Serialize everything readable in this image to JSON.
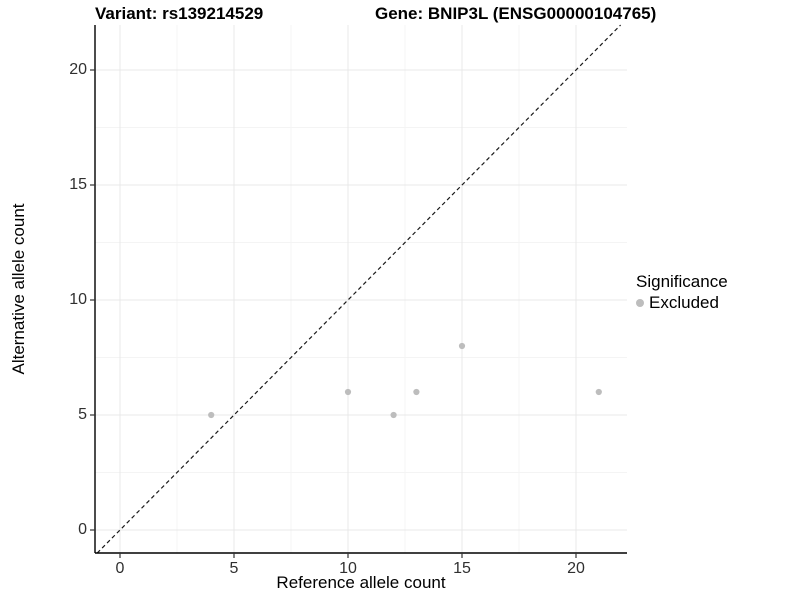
{
  "header": {
    "variant_title": "Variant: rs139214529",
    "gene_title": "Gene: BNIP3L (ENSG00000104765)"
  },
  "legend": {
    "title": "Significance",
    "items": [
      {
        "label": "Excluded",
        "color": "#bdbdbd"
      }
    ]
  },
  "chart_data": {
    "type": "scatter",
    "title": "Variant: rs139214529   Gene: BNIP3L (ENSG00000104765)",
    "xlabel": "Reference allele count",
    "ylabel": "Alternative allele count",
    "x_ticks": [
      0,
      5,
      10,
      15,
      20
    ],
    "y_ticks": [
      0,
      5,
      10,
      15,
      20
    ],
    "x_minor_ticks": [
      2.5,
      7.5,
      12.5,
      17.5
    ],
    "y_minor_ticks": [
      2.5,
      7.5,
      12.5,
      17.5
    ],
    "xlim": [
      -1.1,
      22.25
    ],
    "ylim": [
      -1.0,
      21.95
    ],
    "grid": "major+minor",
    "legend_position": "right",
    "series": [
      {
        "name": "Excluded",
        "color": "#bdbdbd",
        "points": [
          [
            4,
            5
          ],
          [
            10,
            6
          ],
          [
            12,
            5
          ],
          [
            13,
            6
          ],
          [
            15,
            8
          ],
          [
            21,
            6
          ]
        ]
      }
    ],
    "reference_line": {
      "type": "identity",
      "style": "dashed",
      "color": "#1a1a1a"
    }
  },
  "colors": {
    "background": "#ffffff",
    "axis_line": "#000000",
    "major_grid": "#e8e8e8",
    "minor_grid": "#f4f4f4",
    "tick_text": "#303030",
    "point": "#bdbdbd"
  }
}
